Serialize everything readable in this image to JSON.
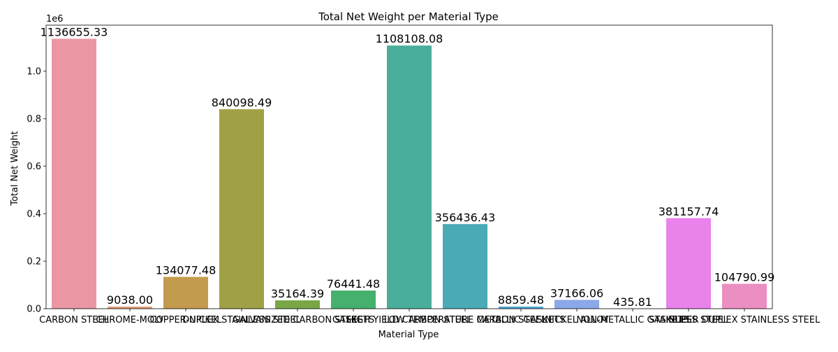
{
  "chart_data": {
    "type": "bar",
    "title": "Total Net Weight per Material Type",
    "xlabel": "Material Type",
    "ylabel": "Total Net Weight",
    "y_offset_text": "1e6",
    "ylim": [
      0,
      1193988
    ],
    "y_ticks": [
      0.0,
      0.2,
      0.4,
      0.6,
      0.8,
      1.0
    ],
    "y_tick_labels": [
      "0.0",
      "0.2",
      "0.4",
      "0.6",
      "0.8",
      "1.0"
    ],
    "y_tick_scale": 1000000,
    "grid": false,
    "legend": "none",
    "categories": [
      "CARBON STEEL",
      "CHROME-MOLY",
      "COPPER-NICKEL",
      "DUPLEX STAINLESS STEEL",
      "GALVANIZED CARBON STEEL",
      "GASKETS",
      "HIGH YIELD CARBON STEEL",
      "LOW TEMPERATURE CARBON STEEL",
      "METALLIC GASKETS",
      "NICKEL ALLOY",
      "NON-METALLIC GASKETS",
      "STAINLESS STEEL",
      "SUPER DUPLEX STAINLESS STEEL"
    ],
    "values": [
      1136655.33,
      9038.0,
      134077.48,
      840098.49,
      35164.39,
      76441.48,
      1108108.08,
      356436.43,
      8859.48,
      37166.06,
      435.81,
      381157.74,
      104790.99
    ],
    "value_labels": [
      "1136655.33",
      "9038.00",
      "134077.48",
      "840098.49",
      "35164.39",
      "76441.48",
      "1108108.08",
      "356436.43",
      "8859.48",
      "37166.06",
      "435.81",
      "381157.74",
      "104790.99"
    ],
    "colors": [
      "#ea96a3",
      "#e39f77",
      "#c39b4c",
      "#a0a045",
      "#79a745",
      "#46b06e",
      "#49ae9b",
      "#4aaab6",
      "#4fa6d0",
      "#8ca8e8",
      "#c69cf1",
      "#e982ea",
      "#eb8ec2"
    ]
  }
}
